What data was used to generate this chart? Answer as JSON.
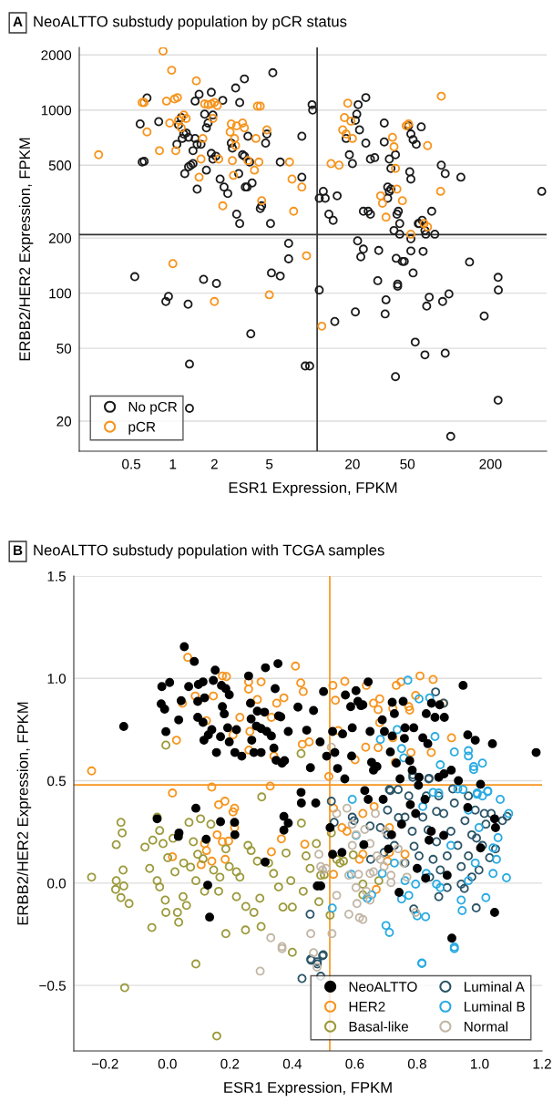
{
  "chart_data": [
    {
      "type": "scatter",
      "title": "NeoALTTO substudy population by pCR status",
      "annotations": [
        "A"
      ],
      "xlabel": "ESR1 Expression, FPKM",
      "ylabel": "ERBB2/HER2 Expression, FPKM",
      "log": "xy",
      "grid": "y",
      "legend": "bottom left",
      "marker": "circle",
      "xlim": [
        0.21,
        510
      ],
      "ylim": [
        13.7,
        2200
      ],
      "xticks": [
        0.5,
        1,
        2,
        5,
        20,
        50,
        200
      ],
      "yticks": [
        20,
        50,
        100,
        200,
        500,
        1000,
        2000
      ],
      "ref_lines": [
        {
          "axis": "x",
          "value": 11.1,
          "color": "#333333"
        },
        {
          "axis": "y",
          "value": 209,
          "color": "#333333"
        }
      ],
      "series": [
        {
          "name": "No pCR",
          "color": "#1a1a1a",
          "x": [
            0.65,
            0.58,
            0.79,
            0.6,
            0.62,
            1.07,
            1.1,
            1.15,
            1.2,
            1.17,
            1.25,
            1.3,
            1.22,
            1.3,
            1.35,
            1.4,
            1.45,
            1.4,
            1.5,
            1.6,
            1.45,
            1.55,
            1.7,
            1.75,
            1.8,
            1.75,
            1.5,
            1.9,
            1.95,
            1.9,
            1.95,
            2.05,
            2.3,
            2.2,
            2.35,
            2.5,
            2.65,
            2.7,
            2.85,
            3.05,
            3.3,
            3.0,
            2.9,
            3.05,
            3.2,
            3.3,
            3.6,
            3.35,
            3.45,
            3.5,
            3.75,
            4.4,
            4.3,
            4.7,
            4.8,
            5.3,
            5.1,
            6.0,
            8.6,
            8.6,
            10.2,
            10.3,
            11.5,
            12.3,
            12.7,
            13.5,
            14.5,
            15.5,
            18,
            19,
            20,
            22,
            21.5,
            21,
            22.5,
            25,
            25,
            27,
            29,
            24,
            26,
            27,
            34,
            34,
            36,
            36,
            37,
            38,
            37,
            38,
            41,
            42,
            43,
            44,
            44,
            52,
            53,
            51,
            53,
            55,
            58,
            63,
            60,
            61,
            64,
            67,
            68,
            75,
            88,
            94,
            122,
            79,
            470,
            21.8,
            24,
            23,
            31,
            53,
            53,
            65,
            40,
            6.9,
            6.9,
            41.5,
            0.53,
            0.89,
            0.93,
            1.29,
            1.67,
            2.07,
            1.32,
            1.32,
            3.67,
            5.18,
            6.0,
            9.1,
            9.8,
            11.5,
            14.9,
            21,
            30.5,
            35,
            34.5,
            41,
            42.5,
            42.5,
            46,
            47.5,
            55,
            57,
            67,
            69,
            72,
            90,
            94,
            100,
            103,
            141,
            180,
            227,
            228,
            227
          ],
          "values": [
            1165,
            840,
            865,
            520,
            525,
            650,
            830,
            910,
            740,
            700,
            750,
            710,
            450,
            490,
            500,
            510,
            700,
            600,
            650,
            650,
            1120,
            1220,
            950,
            800,
            850,
            470,
            370,
            1250,
            940,
            580,
            540,
            560,
            1130,
            420,
            380,
            350,
            660,
            620,
            1320,
            1100,
            1480,
            450,
            270,
            240,
            570,
            560,
            520,
            380,
            380,
            720,
            400,
            300,
            290,
            660,
            740,
            1600,
            240,
            520,
            720,
            430,
            1070,
            1000,
            330,
            360,
            330,
            270,
            250,
            340,
            700,
            570,
            510,
            1070,
            950,
            880,
            780,
            1170,
            660,
            540,
            550,
            280,
            280,
            270,
            670,
            850,
            380,
            330,
            360,
            370,
            540,
            480,
            570,
            270,
            280,
            240,
            210,
            460,
            420,
            820,
            740,
            690,
            650,
            810,
            240,
            240,
            250,
            220,
            210,
            280,
            500,
            450,
            430,
            210,
            360,
            193,
            174,
            158,
            171,
            198,
            170,
            169,
            220,
            187,
            154,
            155,
            123,
            90,
            96,
            87,
            119,
            113,
            41,
            23.5,
            60,
            129,
            124,
            40,
            40,
            104,
            70,
            79,
            117,
            92,
            77,
            35,
            112,
            109,
            149,
            149,
            129,
            54,
            46,
            85,
            95,
            90,
            47,
            99,
            16.5,
            148,
            75,
            122,
            104,
            26
          ]
        },
        {
          "name": "pCR",
          "color": "#f7941d",
          "x": [
            0.29,
            0.85,
            0.98,
            1.48,
            0.6,
            0.62,
            0.65,
            0.8,
            0.95,
            0.9,
            1.03,
            1.08,
            1.2,
            1.25,
            1.15,
            1.1,
            1.05,
            1.7,
            1.8,
            1.9,
            2.0,
            2.1,
            1.95,
            1.65,
            1.6,
            1.55,
            2.15,
            2.3,
            2.65,
            2.6,
            2.8,
            2.85,
            2.9,
            2.7,
            2.75,
            3.2,
            3.3,
            3.5,
            4.1,
            4.3,
            4.0,
            4.2,
            3.9,
            4.4,
            4.8,
            7.0,
            7.3,
            7.5,
            8.6,
            14,
            16,
            17.5,
            18.5,
            17,
            18,
            19.5,
            20,
            32,
            33,
            35,
            39,
            40,
            41,
            42,
            46,
            49,
            51,
            53,
            66,
            70,
            88,
            87,
            70,
            1.0,
            2.0,
            5.0,
            9.3,
            12
          ],
          "values": [
            570,
            2100,
            1650,
            1445,
            1100,
            1100,
            760,
            600,
            850,
            1120,
            1150,
            1170,
            940,
            900,
            800,
            880,
            600,
            1080,
            1070,
            1080,
            1100,
            1060,
            900,
            700,
            540,
            430,
            540,
            300,
            840,
            760,
            700,
            640,
            820,
            530,
            440,
            850,
            800,
            530,
            1050,
            1050,
            700,
            520,
            470,
            320,
            780,
            520,
            420,
            280,
            380,
            510,
            500,
            910,
            1090,
            780,
            740,
            870,
            700,
            340,
            310,
            260,
            710,
            630,
            480,
            370,
            320,
            820,
            840,
            210,
            240,
            230,
            1190,
            360,
            640,
            145,
            90,
            98,
            160,
            66
          ]
        }
      ]
    },
    {
      "type": "scatter",
      "title": "NeoALTTO substudy population with TCGA samples",
      "annotations": [
        "B"
      ],
      "xlabel": "ESR1 Expression, FPKM",
      "ylabel": "ERBB2/HER2 Expression, FPKM",
      "grid": "y",
      "legend": "bottom right",
      "marker": "circle",
      "xlim": [
        -0.3,
        1.2
      ],
      "ylim": [
        -0.82,
        1.5
      ],
      "xticks": [
        {
          "value": -0.2,
          "label": "−0.2"
        },
        {
          "value": 0,
          "label": "0.0"
        },
        {
          "value": 0.2,
          "label": "0.2"
        },
        {
          "value": 0.4,
          "label": "0.4"
        },
        {
          "value": 0.6,
          "label": "0.6"
        },
        {
          "value": 0.8,
          "label": "0.8"
        },
        {
          "value": 1.0,
          "label": "1.0"
        },
        {
          "value": 1.2,
          "label": "1.2"
        }
      ],
      "yticks": [
        {
          "value": -0.5,
          "label": "−0.5"
        },
        {
          "value": 0,
          "label": "0.0"
        },
        {
          "value": 0.5,
          "label": "0.5"
        },
        {
          "value": 1.0,
          "label": "1.0"
        },
        {
          "value": 1.5,
          "label": "1.5"
        }
      ],
      "ref_lines": [
        {
          "axis": "x",
          "value": 0.52,
          "color": "#f7941d"
        },
        {
          "axis": "y",
          "value": 0.48,
          "color": "#f7941d"
        }
      ],
      "series": [
        {
          "name": "NeoALTTO",
          "color": "#000000",
          "marker": "circle",
          "x": [
            -0.14,
            0.054,
            0.086,
            -0.018,
            0.007,
            -0.02,
            -0.009,
            -0.005,
            0.036,
            0.044,
            0.068,
            0.099,
            0.114,
            0.097,
            0.119,
            0.097,
            0.114,
            0.117,
            0.131,
            0.142,
            0.153,
            0.147,
            0.157,
            0.173,
            0.187,
            0.198,
            0.176,
            0.182,
            0.17,
            0.193,
            0.198,
            0.216,
            0.221,
            0.238,
            0.26,
            0.266,
            0.268,
            0.27,
            0.277,
            0.285,
            0.288,
            0.3,
            0.3,
            0.311,
            0.318,
            0.333,
            0.341,
            0.345,
            0.348,
            0.367,
            0.356,
            0.375,
            0.387,
            0.354,
            0.314,
            0.363,
            0.418,
            0.446,
            0.458,
            0.468,
            0.489,
            0.5,
            0.51,
            0.529,
            0.536,
            0.545,
            0.561,
            0.568,
            0.57,
            0.587,
            0.592,
            0.59,
            0.604,
            0.61,
            0.62,
            0.626,
            0.643,
            0.649,
            0.654,
            0.66,
            0.671,
            0.688,
            0.695,
            0.72,
            0.727,
            0.72,
            0.714,
            0.733,
            0.745,
            0.755,
            0.761,
            0.759,
            0.776,
            0.784,
            0.789,
            0.806,
            0.818,
            0.829,
            0.834,
            0.846,
            0.857,
            0.872,
            0.887,
            0.869,
            0.886,
            0.909,
            0.932,
            0.947,
            0.962,
            0.986,
            1.003,
            1.041,
            1.181,
            -0.033,
            0.091,
            0.035,
            0.037,
            0.124,
            0.17,
            0.215,
            0.216,
            0.313,
            0.373,
            0.373,
            0.387,
            0.428,
            0.429,
            0.475,
            0.48,
            0.491,
            0.135,
            0.129,
            0.521,
            0.529,
            0.559,
            0.632,
            0.643,
            0.629,
            0.691,
            0.708,
            0.718,
            0.742,
            0.75,
            0.778,
            0.795,
            0.804,
            0.825,
            0.8,
            0.827,
            0.838,
            0.845,
            0.885,
            0.896,
            0.911,
            0.962,
            1.003,
            1.048,
            1.051,
            1.048
          ],
          "values": [
            0.765,
            1.155,
            1.083,
            0.96,
            0.98,
            0.876,
            0.85,
            0.74,
            0.797,
            0.891,
            0.96,
            0.97,
            0.983,
            0.888,
            0.905,
            0.81,
            0.785,
            0.698,
            0.724,
            0.75,
            1.04,
            0.99,
            0.638,
            0.966,
            0.95,
            0.92,
            0.862,
            0.827,
            0.715,
            0.759,
            0.69,
            0.638,
            0.75,
            0.62,
            1.012,
            0.879,
            0.802,
            0.698,
            0.638,
            0.767,
            0.84,
            0.755,
            0.638,
            0.835,
            0.741,
            0.719,
            0.66,
            0.95,
            0.6,
            0.586,
            0.817,
            0.598,
            0.741,
            1.072,
            1.052,
            0.812,
            0.86,
            0.747,
            0.564,
            0.843,
            0.69,
            0.936,
            0.62,
            0.741,
            0.638,
            0.56,
            0.729,
            0.509,
            0.919,
            0.862,
            0.759,
            0.621,
            0.94,
            0.888,
            0.867,
            0.871,
            0.983,
            0.741,
            0.59,
            0.552,
            0.569,
            0.798,
            0.741,
            0.883,
            0.828,
            0.719,
            0.641,
            0.586,
            0.509,
            0.888,
            0.759,
            0.707,
            0.598,
            0.552,
            0.759,
            0.517,
            0.71,
            0.828,
            0.681,
            0.879,
            0.81,
            0.871,
            0.81,
            0.517,
            0.534,
            0.552,
            0.5,
            0.966,
            0.724,
            0.698,
            0.483,
            0.681,
            0.638,
            0.314,
            0.366,
            0.228,
            0.245,
            0.214,
            0.3,
            0.297,
            0.236,
            0.103,
            0.259,
            0.326,
            0.293,
            0.443,
            0.391,
            0.391,
            -0.014,
            -0.014,
            -0.166,
            -0.01,
            0.271,
            0.141,
            0.15,
            0.452,
            0.409,
            0.188,
            0.409,
            0.167,
            0.236,
            -0.045,
            0.288,
            0.383,
            0.34,
            0.478,
            0.409,
            0.072,
            0.024,
            0.21,
            0.253,
            0.233,
            0.038,
            -0.269,
            0.369,
            0.172,
            0.314,
            0.271,
            -0.143
          ]
        },
        {
          "name": "HER2",
          "color": "#f7941d",
          "x": [
            -0.243,
            0.065,
            0.048,
            0.029,
            0.089,
            0.125,
            0.147,
            0.176,
            0.189,
            0.232,
            0.21,
            0.26,
            0.26,
            0.264,
            0.261,
            0.3,
            0.288,
            0.333,
            0.341,
            0.35,
            0.373,
            0.41,
            0.427,
            0.435,
            0.432,
            0.454,
            0.517,
            0.53,
            0.538,
            0.547,
            0.568,
            0.601,
            0.635,
            0.637,
            0.66,
            0.675,
            0.68,
            0.675,
            0.68,
            0.722,
            0.722,
            0.73,
            0.733,
            0.748,
            0.773,
            0.776,
            0.78,
            0.795,
            0.809,
            0.851,
            0.845,
            0.883,
            0.91,
            0.016,
            0.142,
            0.164,
            0.184,
            0.215,
            0.21,
            0.215,
            0.119,
            0.125,
            0.159,
            0.176,
            0.196,
            0.185,
            0.142,
            0.108,
            0.016,
            0.329,
            0.365,
            0.333,
            0.44,
            0.532,
            0.559,
            0.575,
            0.532,
            0.615,
            0.626,
            0.626,
            0.662,
            0.669,
            0.711,
            0.711,
            0.761,
            0.705
          ],
          "values": [
            0.548,
            1.103,
            0.879,
            0.698,
            0.914,
            0.793,
            0.914,
            1.012,
            1.009,
            0.81,
            0.724,
            0.983,
            0.948,
            0.741,
            0.65,
            0.983,
            0.897,
            0.81,
            0.621,
            0.879,
            0.905,
            1.06,
            0.978,
            0.936,
            0.678,
            0.69,
            0.521,
            0.966,
            0.893,
            0.745,
            0.986,
            0.603,
            0.664,
            0.966,
            0.879,
            0.848,
            0.9,
            0.662,
            0.784,
            0.853,
            0.71,
            0.59,
            0.966,
            0.983,
            0.862,
            0.845,
            0.638,
            0.917,
            1.012,
            0.995,
            0.638,
            0.879,
            0.71,
            0.44,
            0.469,
            0.383,
            0.4,
            0.366,
            0.348,
            0.271,
            0.193,
            0.159,
            0.236,
            0.202,
            0.205,
            0.116,
            0.107,
            0.09,
            0.129,
            0.474,
            0.216,
            0.153,
            0.19,
            0.366,
            0.271,
            0.253,
            0.043,
            0.116,
            0.141,
            0.34,
            0.374,
            -0.031,
            0.271,
            0.15,
            0.141,
            0.107
          ]
        },
        {
          "name": "Basal-like",
          "color": "#9c9a3c",
          "x": [
            -0.243,
            -0.164,
            -0.149,
            -0.145,
            -0.164,
            -0.166,
            -0.14,
            -0.149,
            -0.123,
            -0.142,
            -0.072,
            -0.057,
            -0.047,
            -0.033,
            -0.025,
            -0.033,
            -0.025,
            -0.007,
            -0.005,
            -0.05,
            -0.014,
            0.001,
            0.018,
            0.024,
            0.05,
            0.061,
            0.032,
            0.036,
            0.069,
            0.083,
            0.052,
            0.074,
            0.091,
            0.106,
            0.119,
            0.091,
            0.097,
            0.114,
            0.139,
            0.148,
            0.164,
            0.168,
            0.187,
            0.187,
            0.198,
            0.221,
            0.221,
            0.232,
            0.25,
            0.251,
            0.258,
            0.268,
            0.277,
            0.288,
            0.296,
            0.3,
            0.302,
            0.324,
            0.34,
            0.356,
            0.37,
            0.38,
            0.395,
            0.4,
            0.4,
            0.429,
            0.435,
            0.444,
            0.457,
            0.477,
            0.485,
            0.491,
            0.502,
            0.521,
            0.525,
            0.542,
            0.553,
            0.564,
            0.595,
            0.626,
            0.626,
            0.677,
            -0.137,
            0.158,
            -0.005,
            0.428
          ],
          "values": [
            0.029,
            0.188,
            0.297,
            0.245,
            0.012,
            -0.031,
            -0.014,
            -0.071,
            -0.1,
            0.064,
            0.176,
            0.072,
            0.21,
            0.322,
            0.257,
            0.012,
            -0.019,
            -0.083,
            -0.143,
            -0.217,
            0.193,
            0.124,
            0.219,
            0.055,
            -0.066,
            -0.109,
            -0.143,
            -0.191,
            0.297,
            0.202,
            0.098,
            0.078,
            0.012,
            0.314,
            -0.04,
            -0.395,
            0.141,
            0.119,
            0.288,
            0.064,
            -0.04,
            0.029,
            0.167,
            -0.247,
            0.081,
            0.055,
            -0.066,
            0.029,
            -0.229,
            -0.114,
            0.184,
            0.159,
            -0.143,
            0.107,
            -0.074,
            -0.212,
            0.421,
            0.098,
            0.047,
            -0.019,
            -0.117,
            0.147,
            0.012,
            -0.117,
            -0.338,
            0.293,
            -0.04,
            0.133,
            0.072,
            0.193,
            -0.091,
            0.038,
            0.041,
            -0.157,
            0.245,
            0.116,
            0.098,
            0.107,
            0.138,
            -0.005,
            -0.057,
            0.012,
            -0.511,
            -0.747,
            0.674,
            0.633
          ]
        },
        {
          "name": "Luminal A",
          "color": "#2b5567",
          "x": [
            0.46,
            0.48,
            0.499,
            0.431,
            0.491,
            0.457,
            0.459,
            0.48,
            0.497,
            0.525,
            0.534,
            0.592,
            0.598,
            0.649,
            0.651,
            0.682,
            0.705,
            0.714,
            0.789,
            0.869,
            0.951,
            0.989,
            1.051,
            1.073,
            1.088,
            0.786,
            0.837,
            0.859,
            0.885,
            0.838,
            0.786,
            0.711,
            0.739,
            0.727,
            0.761,
            0.784,
            0.806,
            0.818,
            0.84,
            0.862,
            0.885,
            0.896,
            0.908,
            0.919,
            0.93,
            0.941,
            0.953,
            0.964,
            0.975,
            0.986,
            0.998,
            1.009,
            1.02,
            1.032,
            1.037,
            0.761,
            0.773,
            0.829,
            0.851,
            0.874,
            0.835,
            0.862,
            0.79,
            0.74,
            0.705,
            0.694,
            0.896,
            0.941,
            0.914,
            0.869,
            0.964,
            0.99,
            0.975,
            1.015
          ],
          "values": [
            -0.377,
            -0.395,
            -0.35,
            -0.466,
            -0.455,
            -0.152,
            -0.371,
            -0.384,
            -0.355,
            0.4,
            0.297,
            0.322,
            0.305,
            0.279,
            0.116,
            0.271,
            0.357,
            0.452,
            -0.126,
            -0.066,
            -0.026,
            -0.121,
            0.167,
            0.305,
            0.326,
            0.529,
            0.509,
            0.934,
            0.879,
            0.512,
            0.517,
            0.457,
            0.457,
            0.184,
            0.098,
            0.253,
            0.133,
            0.322,
            0.029,
            0.202,
            0.34,
            0.133,
            0.253,
            0.391,
            0.184,
            0.081,
            0.305,
            0.133,
            0.236,
            0.357,
            0.064,
            0.184,
            0.288,
            0.124,
            0.34,
            0.322,
            0.426,
            0.426,
            0.116,
            0.064,
            0.26,
            0.35,
            0.18,
            0.32,
            0.236,
            0.15,
            -0.022,
            -0.005,
            0.46,
            0.426,
            0.426,
            0.22,
            0.03,
            0.34
          ]
        },
        {
          "name": "Luminal B",
          "color": "#29abe2",
          "x": [
            0.77,
            0.736,
            0.682,
            0.75,
            0.757,
            0.806,
            0.84,
            0.857,
            0.874,
            0.919,
            0.964,
            0.964,
            0.981,
            0.981,
            1.009,
            0.992,
            1.026,
            0.947,
            0.869,
            0.592,
            0.604,
            0.64,
            0.589,
            0.528,
            0.7,
            0.711,
            0.75,
            0.773,
            0.795,
            0.8,
            0.827,
            0.815,
            0.919,
            0.944,
            0.941,
            0.964,
            1.02,
            1.086,
            1.093,
            1.054,
            1.059,
            1.026,
            0.992,
            0.93,
            0.874,
            0.862,
            0.908,
            0.986,
            0.998,
            1.043,
            1.066,
            0.851,
            0.829,
            0.761,
            0.727,
            0.688,
            0.654,
            0.818,
            0.964,
            1.009,
            1.043,
            0.815,
            0.919
          ],
          "values": [
            0.991,
            0.75,
            0.702,
            0.657,
            0.612,
            0.9,
            0.905,
            0.716,
            0.578,
            0.641,
            0.647,
            0.621,
            0.569,
            0.555,
            0.586,
            0.44,
            0.45,
            0.457,
            0.44,
            0.409,
            0.233,
            -0.074,
            0.043,
            -0.122,
            -0.207,
            -0.241,
            -0.078,
            -0.06,
            -0.005,
            -0.16,
            -0.164,
            -0.39,
            -0.312,
            -0.134,
            -0.083,
            0.012,
            -0.071,
            0.026,
            0.34,
            0.116,
            0.222,
            0.447,
            0.434,
            0.46,
            -0.022,
            -0.005,
            0.184,
            0.098,
            0.271,
            0.047,
            0.409,
            0.443,
            0.047,
            0.012,
            0.098,
            0.047,
            -0.057,
            0.374,
            0.357,
            0.426,
            0.172,
            -0.393,
            -0.32
          ]
        },
        {
          "name": "Normal",
          "color": "#c2b6a6",
          "x": [
            0.297,
            0.367,
            0.468,
            0.479,
            0.331,
            0.367,
            0.459,
            0.527,
            0.542,
            0.581,
            0.615,
            0.626,
            0.607,
            0.649,
            0.637,
            0.604,
            0.581,
            0.612,
            0.649,
            0.66,
            0.485,
            0.491,
            0.497,
            0.508,
            0.542,
            0.575,
            0.592,
            0.604,
            0.592,
            0.632,
            0.649,
            0.671,
            0.682,
            0.694,
            0.716,
            0.716,
            0.739,
            0.757,
            0.795,
            0.767,
            0.525,
            0.699,
            0.666
          ],
          "values": [
            -0.43,
            -0.32,
            -0.34,
            -0.41,
            -0.267,
            -0.31,
            -0.247,
            -0.247,
            -0.06,
            -0.152,
            -0.169,
            -0.178,
            -0.1,
            -0.083,
            -0.04,
            -0.022,
            0.038,
            0.043,
            0.047,
            0.055,
            0.141,
            0.081,
            0.064,
            0.072,
            0.34,
            0.366,
            0.288,
            0.236,
            0.184,
            0.262,
            0.193,
            0.133,
            0.116,
            0.081,
            0.038,
            0.003,
            0.167,
            0.098,
            -0.143,
            0.029,
            0.664,
            0.253,
            0.34
          ]
        }
      ]
    }
  ]
}
